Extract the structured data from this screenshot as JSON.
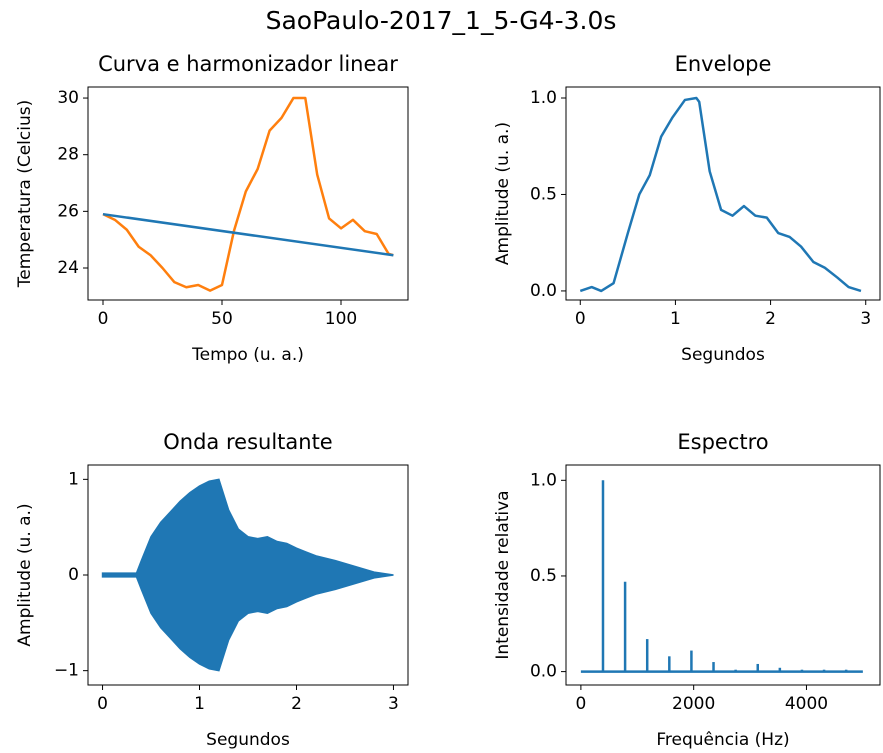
{
  "title": "SaoPaulo-2017_1_5-G4-3.0s",
  "chart_data": [
    {
      "type": "line",
      "title": "Curva e harmonizador linear",
      "xlabel": "Tempo (u. a.)",
      "ylabel": "Temperatura (Celcius)",
      "xlim": [
        -6.3,
        128.15
      ],
      "ylim": [
        22.87,
        30.39
      ],
      "xticks": [
        0,
        50,
        100
      ],
      "yticks": [
        24,
        26,
        28,
        30
      ],
      "series": [
        {
          "color": "#ff7f0e",
          "x": [
            0,
            5,
            10,
            15,
            20,
            25,
            30,
            35,
            40,
            45,
            50,
            55,
            60,
            65,
            70,
            75,
            80,
            85,
            90,
            95,
            100,
            105,
            110,
            115,
            120,
            122
          ],
          "values": [
            25.9,
            25.7,
            25.35,
            24.75,
            24.45,
            24.0,
            23.5,
            23.32,
            23.4,
            23.2,
            23.4,
            25.3,
            26.7,
            27.5,
            28.85,
            29.3,
            30.0,
            30.0,
            27.3,
            25.75,
            25.4,
            25.7,
            25.3,
            25.2,
            24.5,
            24.45
          ]
        },
        {
          "color": "#1f77b4",
          "x": [
            0,
            122
          ],
          "values": [
            25.9,
            24.45
          ]
        }
      ]
    },
    {
      "type": "line",
      "title": "Envelope",
      "xlabel": "Segundos",
      "ylabel": "Amplitude (u. a.)",
      "xlim": [
        -0.15,
        3.15
      ],
      "ylim": [
        -0.047,
        1.057
      ],
      "xticks": [
        0,
        1,
        2,
        3
      ],
      "yticks": [
        {
          "value": 0,
          "label": "0.0"
        },
        {
          "value": 0.5,
          "label": "0.5"
        },
        {
          "value": 1,
          "label": "1.0"
        }
      ],
      "series": [
        {
          "color": "#1f77b4",
          "x": [
            0,
            0.12,
            0.22,
            0.35,
            0.5,
            0.62,
            0.73,
            0.85,
            0.97,
            1.1,
            1.22,
            1.25,
            1.36,
            1.48,
            1.6,
            1.72,
            1.84,
            1.96,
            2.08,
            2.2,
            2.32,
            2.45,
            2.57,
            2.7,
            2.82,
            2.95
          ],
          "values": [
            0.0,
            0.02,
            0.0,
            0.04,
            0.3,
            0.5,
            0.6,
            0.8,
            0.9,
            0.99,
            1.0,
            0.98,
            0.62,
            0.42,
            0.39,
            0.44,
            0.39,
            0.38,
            0.3,
            0.28,
            0.23,
            0.15,
            0.12,
            0.07,
            0.02,
            0.0
          ]
        }
      ]
    },
    {
      "type": "area",
      "title": "Onda resultante",
      "xlabel": "Segundos",
      "ylabel": "Amplitude (u. a.)",
      "xlim": [
        -0.15,
        3.15
      ],
      "ylim": [
        -1.15,
        1.15
      ],
      "xticks": [
        0,
        1,
        2,
        3
      ],
      "yticks": [
        {
          "value": -1,
          "label": "−1"
        },
        0,
        1
      ],
      "color": "#1f77b4",
      "x": [
        0,
        0.35,
        0.4,
        0.5,
        0.6,
        0.7,
        0.8,
        0.9,
        1.0,
        1.1,
        1.2,
        1.3,
        1.4,
        1.5,
        1.6,
        1.7,
        1.8,
        1.9,
        2.0,
        2.1,
        2.2,
        2.4,
        2.6,
        2.8,
        3.0
      ],
      "upper": [
        0.02,
        0.02,
        0.15,
        0.4,
        0.55,
        0.66,
        0.77,
        0.86,
        0.93,
        0.98,
        1.0,
        0.68,
        0.48,
        0.4,
        0.38,
        0.4,
        0.35,
        0.33,
        0.28,
        0.24,
        0.2,
        0.15,
        0.09,
        0.03,
        0.0
      ],
      "lower": [
        -0.02,
        -0.02,
        -0.15,
        -0.4,
        -0.55,
        -0.66,
        -0.77,
        -0.86,
        -0.93,
        -0.98,
        -1.0,
        -0.68,
        -0.48,
        -0.4,
        -0.38,
        -0.4,
        -0.35,
        -0.33,
        -0.28,
        -0.24,
        -0.2,
        -0.15,
        -0.09,
        -0.03,
        -0.0
      ]
    },
    {
      "type": "stem",
      "title": "Espectro",
      "xlabel": "Frequência (Hz)",
      "ylabel": "Intensidade relativa",
      "xlim": [
        -264,
        5304
      ],
      "ylim": [
        -0.07,
        1.08
      ],
      "xticks": [
        0,
        2000,
        4000
      ],
      "yticks": [
        {
          "value": 0,
          "label": "0.0"
        },
        {
          "value": 0.5,
          "label": "0.5"
        },
        {
          "value": 1,
          "label": "1.0"
        }
      ],
      "color": "#1f77b4",
      "x": [
        0,
        392,
        784,
        1176,
        1568,
        1960,
        2352,
        2744,
        3136,
        3528,
        3920,
        4312,
        4704,
        5000
      ],
      "values": [
        0,
        1.0,
        0.47,
        0.17,
        0.08,
        0.11,
        0.05,
        0.01,
        0.04,
        0.02,
        0.01,
        0.01,
        0.01,
        0
      ]
    }
  ]
}
